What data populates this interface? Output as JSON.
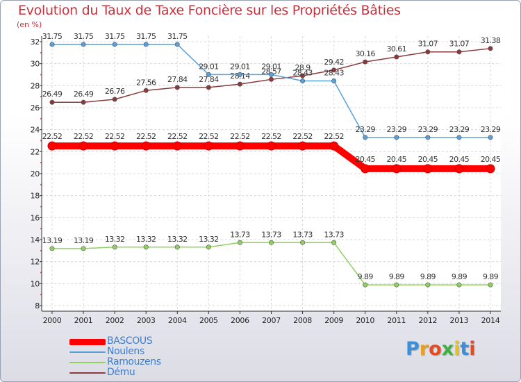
{
  "chart_data": {
    "type": "line",
    "title": "Evolution du Taux de Taxe Foncière sur les Propriétés Bâties",
    "ylabel": "(en %)",
    "xlabel": "",
    "x": [
      "2000",
      "2001",
      "2002",
      "2003",
      "2004",
      "2005",
      "2006",
      "2007",
      "2008",
      "2009",
      "2010",
      "2011",
      "2012",
      "2013",
      "2014"
    ],
    "ylim": [
      8,
      32
    ],
    "yticks": [
      "8",
      "10",
      "12",
      "14",
      "16",
      "18",
      "20",
      "22",
      "24",
      "26",
      "28",
      "30",
      "32"
    ],
    "grid": true,
    "legend_position": "bottom-left",
    "series": [
      {
        "name": "BASCOUS",
        "color": "#ff0000",
        "values": [
          22.52,
          22.52,
          22.52,
          22.52,
          22.52,
          22.52,
          22.52,
          22.52,
          22.52,
          22.52,
          20.45,
          20.45,
          20.45,
          20.45,
          20.45
        ],
        "labels": [
          "22.52",
          "22.52",
          "22.52",
          "22.52",
          "22.52",
          "22.52",
          "22.52",
          "22.52",
          "22.52",
          "22.52",
          "20.45",
          "20.45",
          "20.45",
          "20.45",
          "20.45"
        ]
      },
      {
        "name": "Noulens",
        "color": "#5aa0d8",
        "values": [
          31.75,
          31.75,
          31.75,
          31.75,
          31.75,
          29.01,
          29.01,
          29.01,
          28.43,
          28.43,
          23.29,
          23.29,
          23.29,
          23.29,
          23.29
        ],
        "labels": [
          "31.75",
          "31.75",
          "31.75",
          "31.75",
          "31.75",
          "29.01",
          "29.01",
          "29.01",
          "28.43",
          "28.43",
          "23.29",
          "23.29",
          "23.29",
          "23.29",
          "23.29"
        ]
      },
      {
        "name": "Ramouzens",
        "color": "#90d060",
        "values": [
          13.19,
          13.19,
          13.32,
          13.32,
          13.32,
          13.32,
          13.73,
          13.73,
          13.73,
          13.73,
          9.89,
          9.89,
          9.89,
          9.89,
          9.89
        ],
        "labels": [
          "13.19",
          "13.19",
          "13.32",
          "13.32",
          "13.32",
          "13.32",
          "13.73",
          "13.73",
          "13.73",
          "13.73",
          "9.89",
          "9.89",
          "9.89",
          "9.89",
          "9.89"
        ]
      },
      {
        "name": "Dému",
        "color": "#8a3a3a",
        "values": [
          26.49,
          26.49,
          26.76,
          27.56,
          27.84,
          27.84,
          28.14,
          28.57,
          28.9,
          29.42,
          30.16,
          30.61,
          31.07,
          31.07,
          31.38
        ],
        "labels": [
          "26.49",
          "26.49",
          "26.76",
          "27.56",
          "27.84",
          "27.84",
          "28.14",
          "28.57",
          "28.9",
          "29.42",
          "30.16",
          "30.61",
          "31.07",
          "31.07",
          "31.38"
        ]
      }
    ]
  },
  "logo": {
    "letters": [
      "P",
      "r",
      "o",
      "x",
      "i",
      "t",
      "i"
    ],
    "colors": [
      "#3a8fd8",
      "#e8a020",
      "#e84a20",
      "#40b040",
      "#e8c020",
      "#3a8fd8",
      "#e84a20"
    ]
  }
}
